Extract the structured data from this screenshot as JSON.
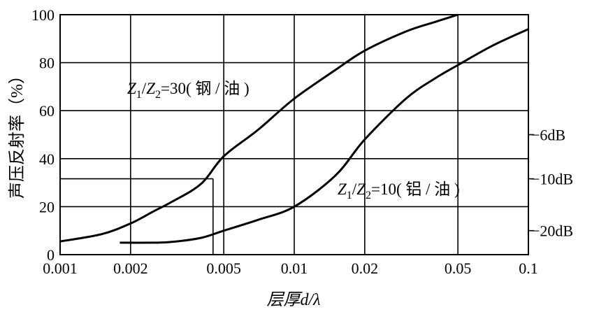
{
  "chart_data": {
    "type": "line",
    "xlabel": "层厚d/λ",
    "ylabel": "声压反射率（%）",
    "x_scale": "log",
    "xlim": [
      0.001,
      0.1
    ],
    "ylim": [
      0,
      100
    ],
    "grid": true,
    "x_ticks": [
      {
        "value": 0.001,
        "label": "0.001"
      },
      {
        "value": 0.002,
        "label": "0.002"
      },
      {
        "value": 0.005,
        "label": "0.005"
      },
      {
        "value": 0.01,
        "label": "0.01"
      },
      {
        "value": 0.02,
        "label": "0.02"
      },
      {
        "value": 0.05,
        "label": "0.05"
      },
      {
        "value": 0.1,
        "label": "0.1"
      }
    ],
    "y_ticks": [
      0,
      20,
      40,
      60,
      80,
      100
    ],
    "db_marks": [
      {
        "value": 50,
        "label": "−6dB"
      },
      {
        "value": 31.6,
        "label": "−10dB"
      },
      {
        "value": 10,
        "label": "−20dB"
      }
    ],
    "series": [
      {
        "name": "Z1/Z2=30(钢/油)",
        "label_parts": {
          "z1": "Z",
          "s1": "1",
          "slash": "/",
          "z2": "Z",
          "s2": "2",
          "rest": "=30( 钢 / 油 )"
        },
        "x": [
          0.001,
          0.0015,
          0.002,
          0.0025,
          0.003,
          0.004,
          0.005,
          0.007,
          0.01,
          0.015,
          0.02,
          0.03,
          0.04,
          0.05
        ],
        "y": [
          5.5,
          8.5,
          13,
          18,
          22,
          29.5,
          41,
          52,
          65,
          77,
          85,
          93,
          97,
          100
        ]
      },
      {
        "name": "Z1/Z2=10(铝/油)",
        "label_parts": {
          "z1": "Z",
          "s1": "1",
          "slash": "/",
          "z2": "Z",
          "s2": "2",
          "rest": "=10( 铝 / 油 )"
        },
        "x": [
          0.0018,
          0.0025,
          0.003,
          0.004,
          0.005,
          0.007,
          0.01,
          0.015,
          0.02,
          0.03,
          0.04,
          0.05,
          0.07,
          0.1
        ],
        "y": [
          5,
          5,
          5.3,
          7,
          10,
          14.5,
          20,
          33,
          48,
          65,
          73.5,
          79,
          87,
          94
        ]
      }
    ],
    "guide_point": {
      "x": 0.0045,
      "y": 31.6
    }
  }
}
